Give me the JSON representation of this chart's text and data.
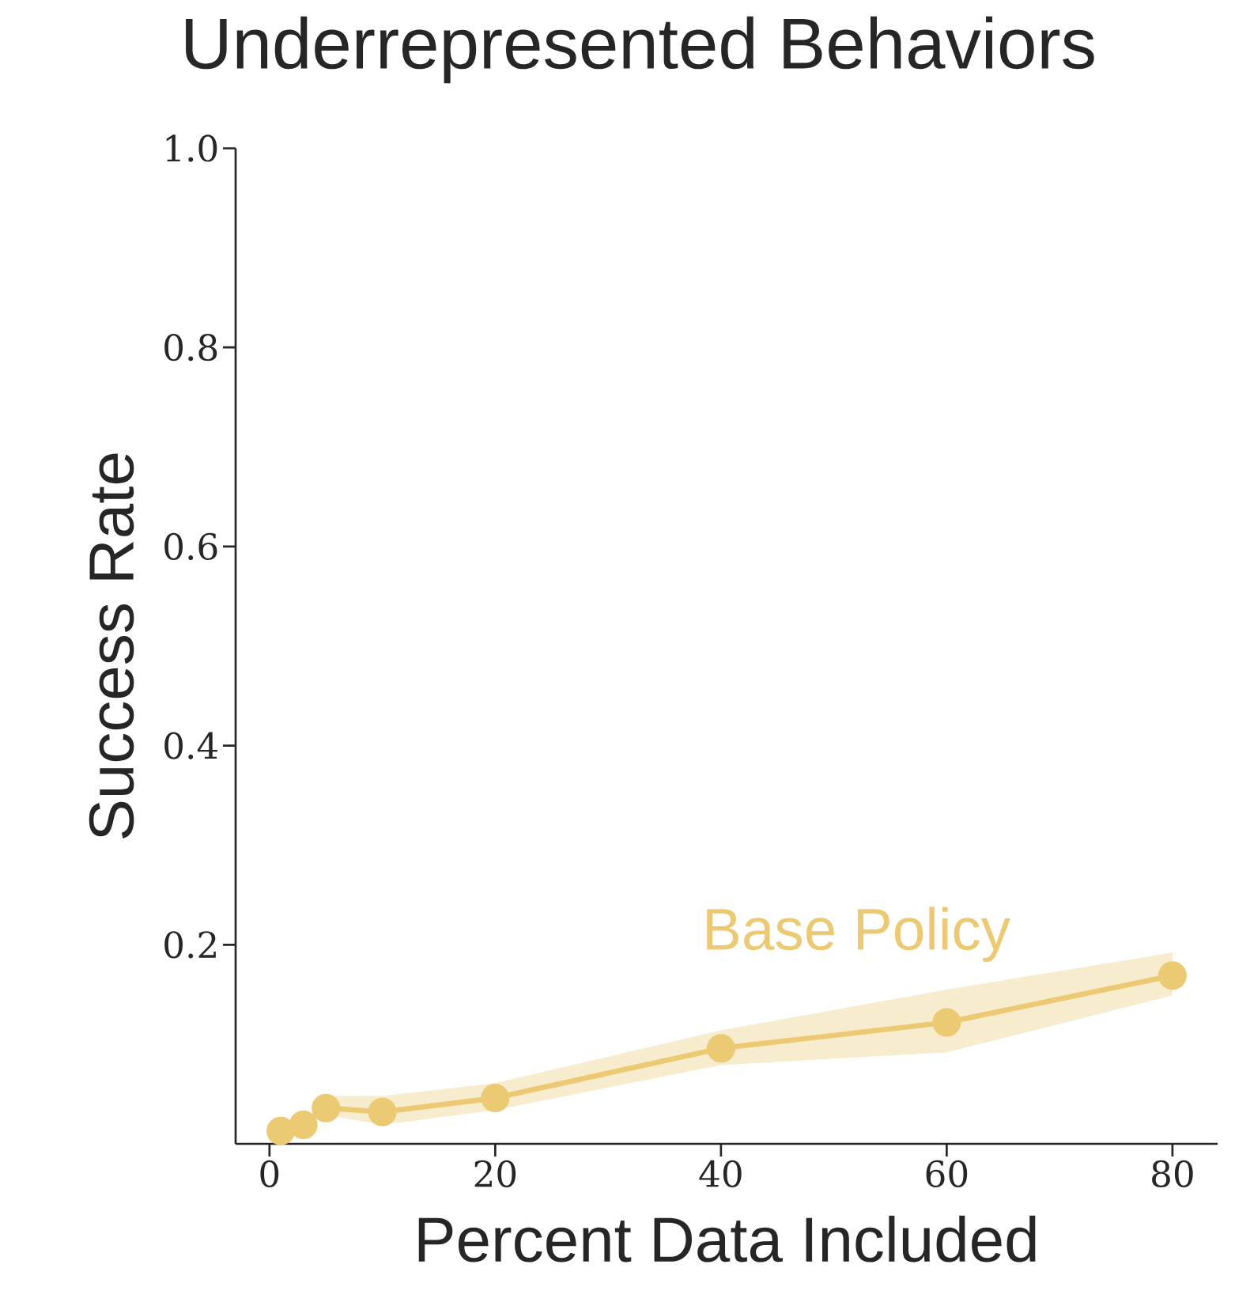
{
  "chart_data": {
    "type": "line",
    "title": "Underrepresented Behaviors",
    "xlabel": "Percent Data Included",
    "ylabel": "Success Rate",
    "x": [
      1,
      3,
      5,
      10,
      20,
      40,
      60,
      80
    ],
    "series": [
      {
        "name": "Base Policy",
        "color": "#ecca73",
        "values": [
          0.013,
          0.019,
          0.036,
          0.032,
          0.046,
          0.096,
          0.122,
          0.169
        ],
        "lower": [
          0.013,
          0.019,
          0.029,
          0.019,
          0.034,
          0.079,
          0.092,
          0.149
        ],
        "upper": [
          0.013,
          0.019,
          0.048,
          0.048,
          0.061,
          0.114,
          0.155,
          0.192
        ]
      }
    ],
    "xlim": [
      -3,
      84
    ],
    "ylim": [
      0,
      1
    ],
    "xticks": [
      0,
      20,
      40,
      60,
      80
    ],
    "yticks": [
      0.2,
      0.4,
      0.6,
      0.8,
      {
        "value": 1,
        "label": "1.0"
      }
    ],
    "legend": false,
    "grid": false,
    "marker": "circle",
    "line_style": "solid"
  }
}
